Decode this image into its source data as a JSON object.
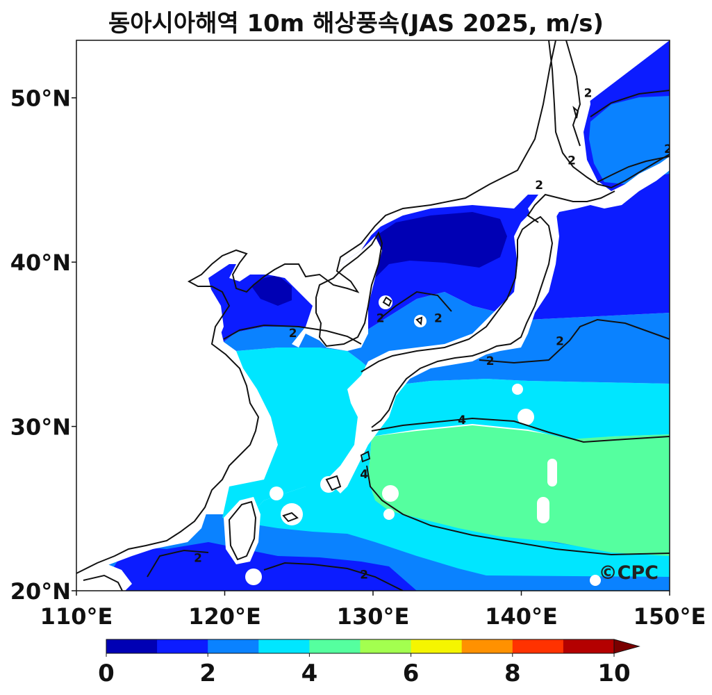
{
  "title": "동아시아해역 10m 해상풍속(JAS 2025, m/s)",
  "map": {
    "lon_range": [
      110,
      150
    ],
    "lat_range": [
      20,
      53.5
    ],
    "x_ticks": [
      {
        "value": 110,
        "label": "110°E"
      },
      {
        "value": 120,
        "label": "120°E"
      },
      {
        "value": 130,
        "label": "130°E"
      },
      {
        "value": 140,
        "label": "140°E"
      },
      {
        "value": 150,
        "label": "150°E"
      }
    ],
    "y_ticks": [
      {
        "value": 20,
        "label": "20°N"
      },
      {
        "value": 30,
        "label": "30°N"
      },
      {
        "value": 40,
        "label": "40°N"
      },
      {
        "value": 50,
        "label": "50°N"
      }
    ],
    "contour_labels": [
      {
        "text": "2",
        "lon": 144.5,
        "lat": 50.3
      },
      {
        "text": "2",
        "lon": 149.9,
        "lat": 46.9
      },
      {
        "text": "2",
        "lon": 143.4,
        "lat": 46.2
      },
      {
        "text": "2",
        "lon": 141.2,
        "lat": 44.7
      },
      {
        "text": "2",
        "lon": 124.6,
        "lat": 35.7
      },
      {
        "text": "2",
        "lon": 130.5,
        "lat": 36.6
      },
      {
        "text": "2",
        "lon": 134.4,
        "lat": 36.6
      },
      {
        "text": "2",
        "lon": 137.9,
        "lat": 34.0
      },
      {
        "text": "2",
        "lon": 142.6,
        "lat": 35.2
      },
      {
        "text": "4",
        "lon": 136.0,
        "lat": 30.4
      },
      {
        "text": "4",
        "lon": 129.4,
        "lat": 27.1
      },
      {
        "text": "2",
        "lon": 118.2,
        "lat": 22.0
      },
      {
        "text": "2",
        "lon": 129.4,
        "lat": 21.0
      }
    ],
    "logo": "©CPC"
  },
  "colorbar": {
    "levels": [
      0,
      1,
      2,
      3,
      4,
      5,
      6,
      7,
      8,
      9,
      10
    ],
    "colors": [
      "#0000b4",
      "#0c1cff",
      "#0a82ff",
      "#00e6ff",
      "#55ff9f",
      "#a3ff4f",
      "#f5f500",
      "#ff9100",
      "#ff3200",
      "#b40000"
    ],
    "extend_color": "#7a0000",
    "tick_labels": [
      "0",
      "2",
      "4",
      "6",
      "8",
      "10"
    ]
  }
}
